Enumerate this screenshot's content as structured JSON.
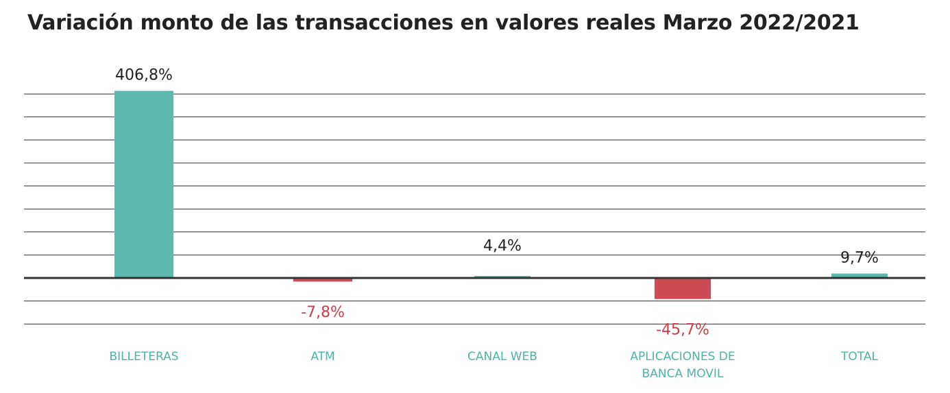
{
  "title": "Variación monto de las transacciones en valores reales Marzo 2022/2021",
  "colors": {
    "positive": "#5db8ae",
    "negative": "#cd4b55",
    "category_text": "#4db3a6",
    "value_text_positive": "#222222",
    "value_text_negative": "#d23c45",
    "grid": "#333333"
  },
  "chart_data": {
    "type": "bar",
    "categories": [
      "BILLETERAS",
      "ATM",
      "CANAL WEB",
      "APLICACIONES DE BANCA MOVIL",
      "TOTAL"
    ],
    "category_lines": [
      [
        "BILLETERAS"
      ],
      [
        "ATM"
      ],
      [
        "CANAL WEB"
      ],
      [
        "APLICACIONES DE",
        "BANCA MOVIL"
      ],
      [
        "TOTAL"
      ]
    ],
    "values": [
      406.8,
      -7.8,
      4.4,
      -45.7,
      9.7
    ],
    "data_labels": [
      "406,8%",
      "-7,8%",
      "4,4%",
      "-45,7%",
      "9,7%"
    ],
    "ylim": [
      -100,
      400
    ],
    "grid": true,
    "legend": "none"
  }
}
